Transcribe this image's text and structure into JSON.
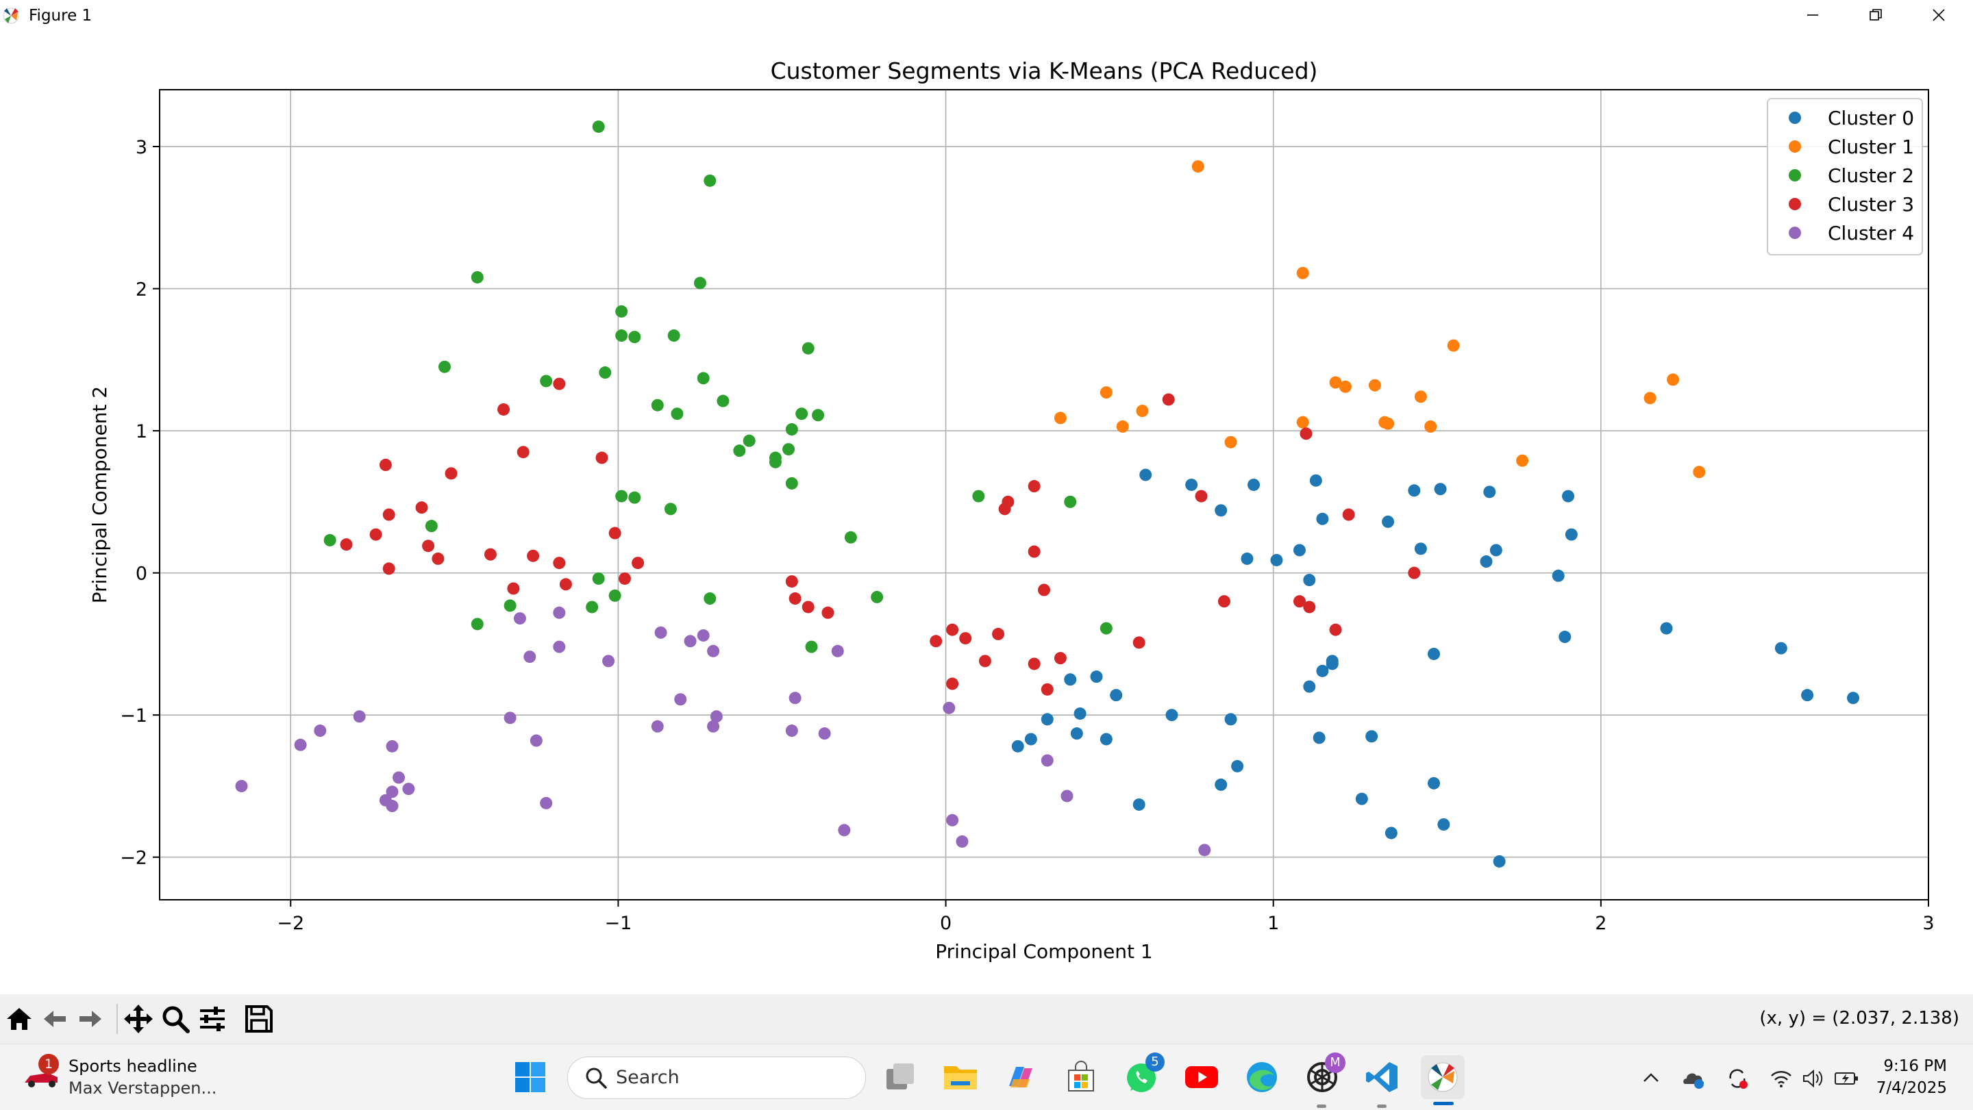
{
  "window": {
    "title": "Figure 1"
  },
  "toolbar": {
    "buttons": [
      "home-icon",
      "back-arrow-icon",
      "forward-arrow-icon",
      "pan-icon",
      "zoom-icon",
      "configure-subplots-icon",
      "save-icon"
    ],
    "coords": "(x, y) = (2.037, 2.138)"
  },
  "chart_data": {
    "type": "scatter",
    "title": "Customer Segments via K-Means (PCA Reduced)",
    "xlabel": "Principal Component 1",
    "ylabel": "Principal Component 2",
    "xlim": [
      -2.4,
      3.0
    ],
    "ylim": [
      -2.3,
      3.4
    ],
    "xticks": [
      -2,
      -1,
      0,
      1,
      2,
      3
    ],
    "yticks": [
      -2,
      -1,
      0,
      1,
      2,
      3
    ],
    "xtick_labels": [
      "−2",
      "−1",
      "0",
      "1",
      "2",
      "3"
    ],
    "ytick_labels": [
      "−2",
      "−1",
      "0",
      "1",
      "2",
      "3"
    ],
    "grid": true,
    "legend_position": "top-right",
    "series": [
      {
        "name": "Cluster 0",
        "color": "#1f77b4",
        "points": [
          [
            0.61,
            0.69
          ],
          [
            0.75,
            0.62
          ],
          [
            0.84,
            0.44
          ],
          [
            0.94,
            0.62
          ],
          [
            0.92,
            0.1
          ],
          [
            1.01,
            0.09
          ],
          [
            1.08,
            0.16
          ],
          [
            1.11,
            -0.05
          ],
          [
            1.13,
            0.65
          ],
          [
            1.15,
            0.38
          ],
          [
            1.35,
            0.36
          ],
          [
            1.43,
            0.58
          ],
          [
            1.51,
            0.59
          ],
          [
            1.45,
            0.17
          ],
          [
            1.66,
            0.57
          ],
          [
            1.65,
            0.08
          ],
          [
            1.68,
            0.16
          ],
          [
            1.87,
            -0.02
          ],
          [
            1.9,
            0.54
          ],
          [
            1.91,
            0.27
          ],
          [
            1.89,
            -0.45
          ],
          [
            1.49,
            -0.57
          ],
          [
            1.18,
            -0.62
          ],
          [
            1.18,
            -0.64
          ],
          [
            1.15,
            -0.69
          ],
          [
            1.11,
            -0.8
          ],
          [
            1.14,
            -1.16
          ],
          [
            1.3,
            -1.15
          ],
          [
            1.27,
            -1.59
          ],
          [
            1.36,
            -1.83
          ],
          [
            1.49,
            -1.48
          ],
          [
            1.52,
            -1.77
          ],
          [
            1.69,
            -2.03
          ],
          [
            0.38,
            -0.75
          ],
          [
            0.46,
            -0.73
          ],
          [
            0.52,
            -0.86
          ],
          [
            0.41,
            -0.99
          ],
          [
            0.31,
            -1.03
          ],
          [
            0.69,
            -1.0
          ],
          [
            0.87,
            -1.03
          ],
          [
            0.4,
            -1.13
          ],
          [
            0.49,
            -1.17
          ],
          [
            0.26,
            -1.17
          ],
          [
            0.22,
            -1.22
          ],
          [
            0.89,
            -1.36
          ],
          [
            0.84,
            -1.49
          ],
          [
            0.59,
            -1.63
          ],
          [
            2.2,
            -0.39
          ],
          [
            2.55,
            -0.53
          ],
          [
            2.63,
            -0.86
          ],
          [
            2.77,
            -0.88
          ]
        ]
      },
      {
        "name": "Cluster 1",
        "color": "#ff7f0e",
        "points": [
          [
            0.77,
            2.86
          ],
          [
            1.09,
            2.11
          ],
          [
            0.35,
            1.09
          ],
          [
            0.49,
            1.27
          ],
          [
            0.54,
            1.03
          ],
          [
            0.6,
            1.14
          ],
          [
            0.87,
            0.92
          ],
          [
            1.09,
            1.06
          ],
          [
            1.19,
            1.34
          ],
          [
            1.22,
            1.31
          ],
          [
            1.31,
            1.32
          ],
          [
            1.34,
            1.06
          ],
          [
            1.35,
            1.05
          ],
          [
            1.45,
            1.24
          ],
          [
            1.48,
            1.03
          ],
          [
            1.55,
            1.6
          ],
          [
            1.76,
            0.79
          ],
          [
            2.15,
            1.23
          ],
          [
            2.22,
            1.36
          ],
          [
            2.3,
            0.71
          ]
        ]
      },
      {
        "name": "Cluster 2",
        "color": "#2ca02c",
        "points": [
          [
            -1.06,
            3.14
          ],
          [
            -0.72,
            2.76
          ],
          [
            -1.43,
            2.08
          ],
          [
            -0.75,
            2.04
          ],
          [
            -0.99,
            1.84
          ],
          [
            -0.99,
            1.67
          ],
          [
            -0.95,
            1.66
          ],
          [
            -0.83,
            1.67
          ],
          [
            -0.42,
            1.58
          ],
          [
            -1.53,
            1.45
          ],
          [
            -1.04,
            1.41
          ],
          [
            -1.22,
            1.35
          ],
          [
            -0.74,
            1.37
          ],
          [
            -0.88,
            1.18
          ],
          [
            -0.82,
            1.12
          ],
          [
            -0.68,
            1.21
          ],
          [
            -0.44,
            1.12
          ],
          [
            -0.39,
            1.11
          ],
          [
            -0.47,
            1.01
          ],
          [
            -0.6,
            0.93
          ],
          [
            -0.63,
            0.86
          ],
          [
            -0.48,
            0.87
          ],
          [
            -0.52,
            0.81
          ],
          [
            -0.52,
            0.78
          ],
          [
            -0.47,
            0.63
          ],
          [
            -0.99,
            0.54
          ],
          [
            -0.95,
            0.53
          ],
          [
            -0.84,
            0.45
          ],
          [
            -1.57,
            0.33
          ],
          [
            -1.88,
            0.23
          ],
          [
            -0.29,
            0.25
          ],
          [
            0.1,
            0.54
          ],
          [
            0.38,
            0.5
          ],
          [
            -1.06,
            -0.04
          ],
          [
            -1.01,
            -0.16
          ],
          [
            -1.08,
            -0.24
          ],
          [
            -1.33,
            -0.23
          ],
          [
            -1.43,
            -0.36
          ],
          [
            -0.72,
            -0.18
          ],
          [
            -0.21,
            -0.17
          ],
          [
            -0.41,
            -0.52
          ],
          [
            0.49,
            -0.39
          ]
        ]
      },
      {
        "name": "Cluster 3",
        "color": "#d62728",
        "points": [
          [
            -1.18,
            1.33
          ],
          [
            -1.35,
            1.15
          ],
          [
            -1.29,
            0.85
          ],
          [
            -1.05,
            0.81
          ],
          [
            -1.71,
            0.76
          ],
          [
            -1.51,
            0.7
          ],
          [
            -1.6,
            0.46
          ],
          [
            -1.7,
            0.41
          ],
          [
            -1.74,
            0.27
          ],
          [
            -1.01,
            0.28
          ],
          [
            -1.83,
            0.2
          ],
          [
            -1.58,
            0.19
          ],
          [
            -1.39,
            0.13
          ],
          [
            -1.26,
            0.12
          ],
          [
            -1.55,
            0.1
          ],
          [
            -1.18,
            0.07
          ],
          [
            -0.94,
            0.07
          ],
          [
            -1.7,
            0.03
          ],
          [
            -0.98,
            -0.04
          ],
          [
            -1.16,
            -0.08
          ],
          [
            -1.32,
            -0.11
          ],
          [
            -0.47,
            -0.06
          ],
          [
            -0.46,
            -0.18
          ],
          [
            -0.42,
            -0.24
          ],
          [
            -0.36,
            -0.28
          ],
          [
            0.68,
            1.22
          ],
          [
            0.78,
            0.54
          ],
          [
            0.27,
            0.61
          ],
          [
            0.19,
            0.5
          ],
          [
            0.18,
            0.45
          ],
          [
            1.1,
            0.98
          ],
          [
            1.23,
            0.41
          ],
          [
            0.27,
            0.15
          ],
          [
            0.3,
            -0.12
          ],
          [
            1.43,
            0.0
          ],
          [
            0.85,
            -0.2
          ],
          [
            1.08,
            -0.2
          ],
          [
            1.11,
            -0.24
          ],
          [
            1.19,
            -0.4
          ],
          [
            0.02,
            -0.4
          ],
          [
            0.06,
            -0.46
          ],
          [
            -0.03,
            -0.48
          ],
          [
            0.16,
            -0.43
          ],
          [
            0.59,
            -0.49
          ],
          [
            0.12,
            -0.62
          ],
          [
            0.27,
            -0.64
          ],
          [
            0.35,
            -0.6
          ],
          [
            0.02,
            -0.78
          ],
          [
            0.31,
            -0.82
          ]
        ]
      },
      {
        "name": "Cluster 4",
        "color": "#9467bd",
        "points": [
          [
            -1.3,
            -0.32
          ],
          [
            -1.18,
            -0.28
          ],
          [
            -1.18,
            -0.52
          ],
          [
            -1.27,
            -0.59
          ],
          [
            -0.87,
            -0.42
          ],
          [
            -0.74,
            -0.44
          ],
          [
            -0.78,
            -0.48
          ],
          [
            -0.71,
            -0.55
          ],
          [
            -1.03,
            -0.62
          ],
          [
            -0.33,
            -0.55
          ],
          [
            -0.46,
            -0.88
          ],
          [
            -0.81,
            -0.89
          ],
          [
            -0.7,
            -1.01
          ],
          [
            -1.33,
            -1.02
          ],
          [
            -1.79,
            -1.01
          ],
          [
            -0.88,
            -1.08
          ],
          [
            -0.71,
            -1.08
          ],
          [
            -0.47,
            -1.11
          ],
          [
            -0.37,
            -1.13
          ],
          [
            -1.91,
            -1.11
          ],
          [
            -1.25,
            -1.18
          ],
          [
            -1.97,
            -1.21
          ],
          [
            -1.69,
            -1.22
          ],
          [
            -1.67,
            -1.44
          ],
          [
            -1.64,
            -1.52
          ],
          [
            -1.69,
            -1.54
          ],
          [
            -1.71,
            -1.6
          ],
          [
            -1.69,
            -1.64
          ],
          [
            -1.22,
            -1.62
          ],
          [
            -2.15,
            -1.5
          ],
          [
            0.01,
            -0.95
          ],
          [
            0.31,
            -1.32
          ],
          [
            0.37,
            -1.57
          ],
          [
            0.02,
            -1.74
          ],
          [
            0.05,
            -1.89
          ],
          [
            -0.31,
            -1.81
          ],
          [
            0.79,
            -1.95
          ]
        ]
      }
    ]
  },
  "taskbar": {
    "news": {
      "badge": "1",
      "headline": "Sports headline",
      "subtitle": "Max Verstappen..."
    },
    "search_label": "Search",
    "apps": [
      "windows-start-icon",
      "task-view-icon",
      "file-explorer-icon",
      "copilot-icon",
      "microsoft-store-icon",
      "whatsapp-icon",
      "youtube-icon",
      "edge-icon",
      "chatgpt-icon",
      "vscode-icon",
      "matplotlib-icon"
    ],
    "whatsapp_badge": "5",
    "chatgpt_badge": "M",
    "time": "9:16 PM",
    "date": "7/4/2025"
  }
}
